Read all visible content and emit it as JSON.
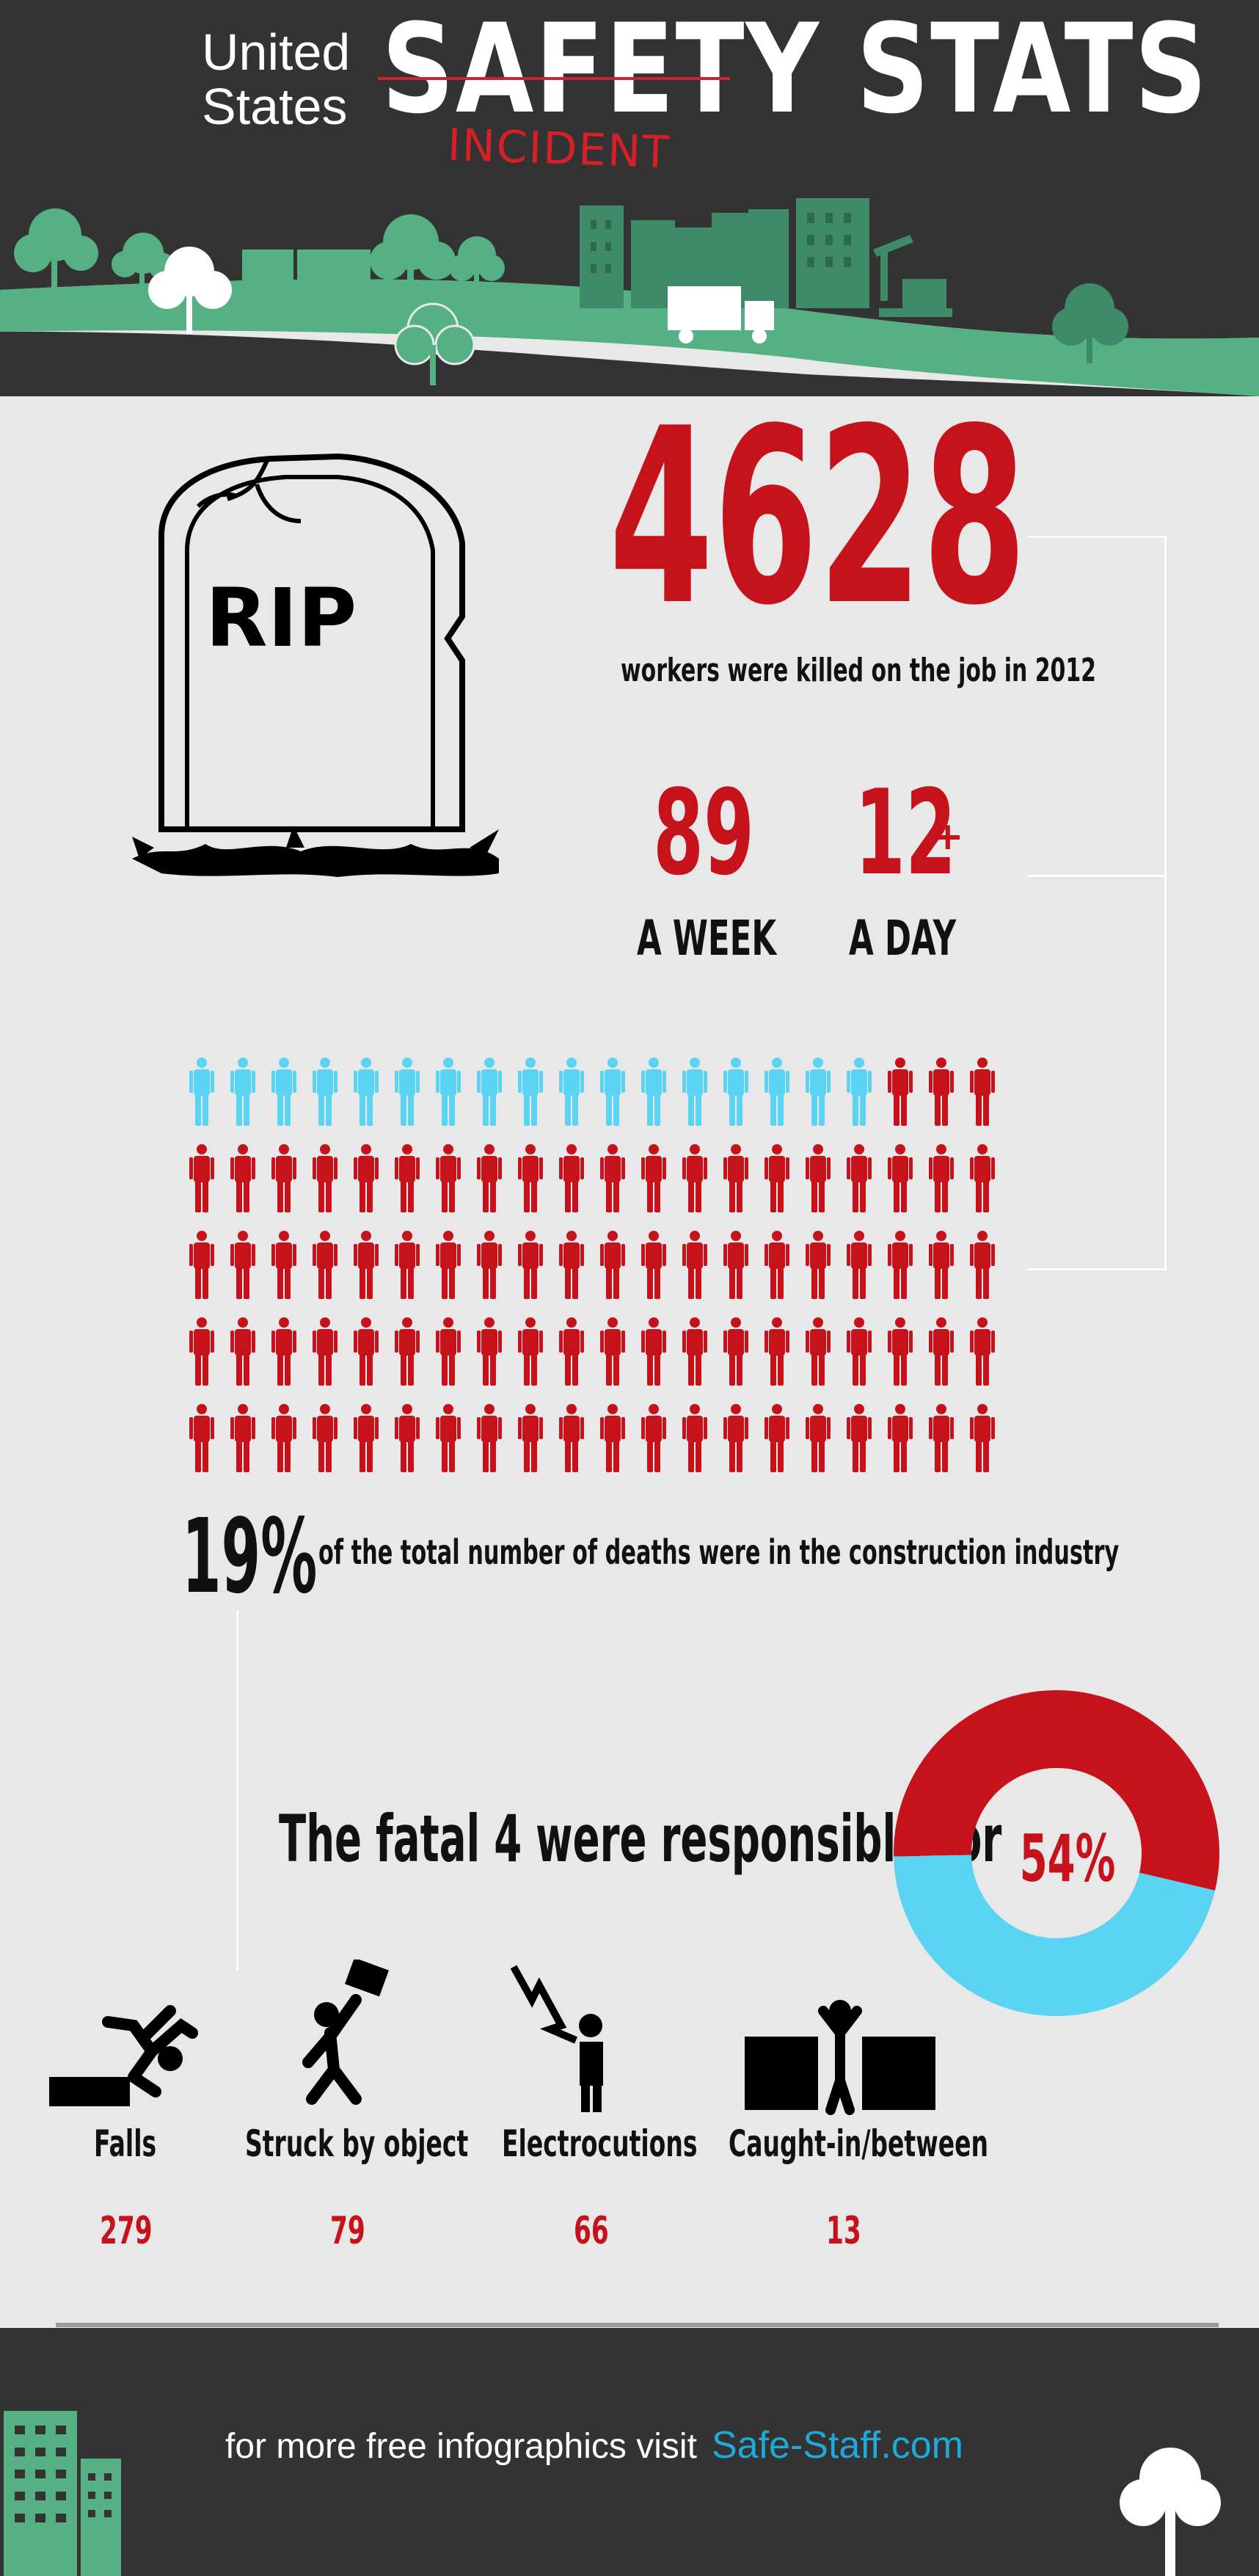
{
  "header": {
    "title_line1": "United",
    "title_line2": "States",
    "title_main": "SAFETY STATS",
    "title_correction": "INCIDENT"
  },
  "stats": {
    "total_killed": "4628",
    "total_caption": "workers were killed on the job in 2012",
    "per_week": "89",
    "per_week_label": "A WEEK",
    "per_day": "12",
    "per_day_suffix": "+",
    "per_day_label": "A DAY"
  },
  "people_chart": {
    "rows": 5,
    "per_row": 20,
    "highlighted": 17,
    "highlight_color": "#5ad4f2",
    "base_color": "#c6121a"
  },
  "construction": {
    "percent": "19%",
    "caption": "of the total number of deaths were in the construction industry"
  },
  "fatal4": {
    "caption": "The fatal 4 were responsible for",
    "percent_label": "54%",
    "percent_value": 54,
    "color_share": "#c6121a",
    "color_rest": "#5ad4f2"
  },
  "hazards": [
    {
      "label": "Falls",
      "count": "279",
      "icon": "falling-person-icon"
    },
    {
      "label": "Struck by object",
      "count": "79",
      "icon": "struck-by-object-icon"
    },
    {
      "label": "Electrocutions",
      "count": "66",
      "icon": "electrocution-icon"
    },
    {
      "label": "Caught-in/between",
      "count": "13",
      "icon": "caught-between-icon"
    }
  ],
  "footer": {
    "text": "for more free infographics visit",
    "link": "Safe-Staff.com"
  },
  "colors": {
    "header_bg": "#333333",
    "accent_red": "#c6121a",
    "accent_blue": "#5ad4f2",
    "grass_green": "#55b084",
    "link_blue": "#1fa9d8"
  }
}
